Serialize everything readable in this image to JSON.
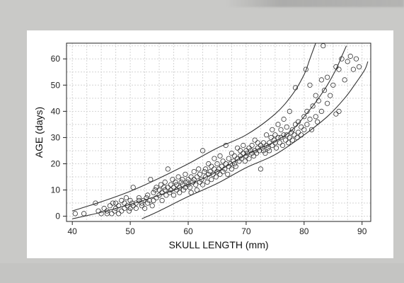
{
  "chart_data": {
    "type": "scatter",
    "title": "",
    "xlabel": "SKULL LENGTH (mm)",
    "ylabel": "AGE (days)",
    "xlim": [
      39,
      91.5
    ],
    "ylim": [
      -2,
      66
    ],
    "xticks": [
      40,
      50,
      60,
      70,
      80,
      90
    ],
    "yticks": [
      0,
      10,
      20,
      30,
      40,
      50,
      60
    ],
    "grid": true,
    "legend": "none",
    "points": [
      [
        40.5,
        1
      ],
      [
        42,
        1
      ],
      [
        44,
        5
      ],
      [
        44.5,
        2
      ],
      [
        45,
        1
      ],
      [
        45.5,
        3
      ],
      [
        46,
        1
      ],
      [
        46,
        2
      ],
      [
        46.5,
        4
      ],
      [
        46.8,
        1
      ],
      [
        47,
        5
      ],
      [
        47.3,
        2
      ],
      [
        47.5,
        3
      ],
      [
        47.5,
        5
      ],
      [
        48,
        1
      ],
      [
        48,
        4
      ],
      [
        48.5,
        6
      ],
      [
        48.5,
        2
      ],
      [
        49,
        3
      ],
      [
        49,
        5
      ],
      [
        49.3,
        7
      ],
      [
        49.5,
        4
      ],
      [
        49.8,
        2
      ],
      [
        50,
        3
      ],
      [
        50,
        6
      ],
      [
        50.3,
        5
      ],
      [
        50.5,
        4
      ],
      [
        50.5,
        11
      ],
      [
        51,
        3
      ],
      [
        51,
        5
      ],
      [
        51.5,
        6
      ],
      [
        51.5,
        7
      ],
      [
        52,
        4
      ],
      [
        52,
        5
      ],
      [
        52.3,
        6
      ],
      [
        52.5,
        3
      ],
      [
        52.8,
        7
      ],
      [
        53,
        5
      ],
      [
        53,
        8
      ],
      [
        53.3,
        6
      ],
      [
        53.5,
        14
      ],
      [
        53.8,
        4
      ],
      [
        54,
        6
      ],
      [
        54,
        9
      ],
      [
        54.3,
        10
      ],
      [
        54.5,
        7
      ],
      [
        54.5,
        11
      ],
      [
        55,
        8
      ],
      [
        55,
        10
      ],
      [
        55.3,
        12
      ],
      [
        55.5,
        9
      ],
      [
        55.5,
        6
      ],
      [
        55.8,
        11
      ],
      [
        56,
        10
      ],
      [
        56,
        13
      ],
      [
        56.2,
        8
      ],
      [
        56.5,
        11
      ],
      [
        56.5,
        18
      ],
      [
        56.8,
        9
      ],
      [
        57,
        10
      ],
      [
        57,
        12
      ],
      [
        57.3,
        14
      ],
      [
        57.5,
        11
      ],
      [
        57.5,
        8
      ],
      [
        57.8,
        13
      ],
      [
        58,
        10
      ],
      [
        58,
        12
      ],
      [
        58.3,
        15
      ],
      [
        58.5,
        11
      ],
      [
        58.5,
        9
      ],
      [
        58.8,
        13
      ],
      [
        59,
        12
      ],
      [
        59,
        14
      ],
      [
        59.2,
        10
      ],
      [
        59.5,
        11
      ],
      [
        59.5,
        16
      ],
      [
        59.8,
        13
      ],
      [
        60,
        12
      ],
      [
        60,
        14
      ],
      [
        60.3,
        11
      ],
      [
        60.5,
        15
      ],
      [
        60.5,
        9
      ],
      [
        60.8,
        13
      ],
      [
        61,
        14
      ],
      [
        61,
        17
      ],
      [
        61.3,
        12
      ],
      [
        61.5,
        15
      ],
      [
        61.5,
        10
      ],
      [
        61.8,
        18
      ],
      [
        62,
        13
      ],
      [
        62,
        16
      ],
      [
        62.3,
        14
      ],
      [
        62.5,
        25
      ],
      [
        62.5,
        12
      ],
      [
        62.8,
        17
      ],
      [
        63,
        15
      ],
      [
        63,
        18
      ],
      [
        63.3,
        13
      ],
      [
        63.5,
        16
      ],
      [
        63.5,
        20
      ],
      [
        63.8,
        17
      ],
      [
        64,
        14
      ],
      [
        64,
        19
      ],
      [
        64.3,
        16
      ],
      [
        64.5,
        18
      ],
      [
        64.5,
        22
      ],
      [
        64.8,
        15
      ],
      [
        65,
        17
      ],
      [
        65,
        20
      ],
      [
        65.3,
        18
      ],
      [
        65.5,
        16
      ],
      [
        65.5,
        23
      ],
      [
        65.8,
        19
      ],
      [
        66,
        17
      ],
      [
        66,
        21
      ],
      [
        66.3,
        18
      ],
      [
        66.5,
        20
      ],
      [
        66.5,
        27
      ],
      [
        66.8,
        16
      ],
      [
        67,
        19
      ],
      [
        67,
        22
      ],
      [
        67.3,
        20
      ],
      [
        67.5,
        18
      ],
      [
        67.5,
        24
      ],
      [
        67.8,
        21
      ],
      [
        68,
        20
      ],
      [
        68,
        23
      ],
      [
        68.2,
        19
      ],
      [
        68.5,
        22
      ],
      [
        68.5,
        26
      ],
      [
        68.8,
        21
      ],
      [
        69,
        23
      ],
      [
        69,
        25
      ],
      [
        69.2,
        22
      ],
      [
        69.5,
        24
      ],
      [
        69.5,
        27
      ],
      [
        69.8,
        21
      ],
      [
        70,
        23
      ],
      [
        70,
        25
      ],
      [
        70.2,
        24
      ],
      [
        70.5,
        22
      ],
      [
        70.5,
        26
      ],
      [
        70.8,
        25
      ],
      [
        71,
        24
      ],
      [
        71,
        27
      ],
      [
        71.3,
        23
      ],
      [
        71.5,
        25
      ],
      [
        71.5,
        29
      ],
      [
        71.8,
        24
      ],
      [
        72,
        26
      ],
      [
        72,
        28
      ],
      [
        72.3,
        25
      ],
      [
        72.5,
        27
      ],
      [
        72.5,
        18
      ],
      [
        72.8,
        26
      ],
      [
        73,
        25
      ],
      [
        73,
        28
      ],
      [
        73.3,
        24
      ],
      [
        73.5,
        27
      ],
      [
        73.5,
        31
      ],
      [
        73.8,
        26
      ],
      [
        74,
        28
      ],
      [
        74,
        25
      ],
      [
        74.3,
        30
      ],
      [
        74.5,
        27
      ],
      [
        74.5,
        33
      ],
      [
        74.8,
        29
      ],
      [
        75,
        28
      ],
      [
        75,
        31
      ],
      [
        75.2,
        26
      ],
      [
        75.5,
        30
      ],
      [
        75.5,
        35
      ],
      [
        75.8,
        28
      ],
      [
        76,
        30
      ],
      [
        76,
        33
      ],
      [
        76.3,
        27
      ],
      [
        76.5,
        31
      ],
      [
        76.5,
        37
      ],
      [
        76.8,
        29
      ],
      [
        77,
        31
      ],
      [
        77,
        34
      ],
      [
        77.3,
        28
      ],
      [
        77.5,
        30
      ],
      [
        77.5,
        40
      ],
      [
        77.8,
        32
      ],
      [
        78,
        29
      ],
      [
        78,
        33
      ],
      [
        78.3,
        31
      ],
      [
        78.5,
        35
      ],
      [
        78.5,
        49
      ],
      [
        78.8,
        30
      ],
      [
        79,
        32
      ],
      [
        79,
        36
      ],
      [
        79.5,
        34
      ],
      [
        79.5,
        31
      ],
      [
        80,
        33
      ],
      [
        80,
        38
      ],
      [
        80.3,
        56
      ],
      [
        80.5,
        35
      ],
      [
        80.5,
        40
      ],
      [
        81,
        37
      ],
      [
        81,
        50
      ],
      [
        81.3,
        33
      ],
      [
        81.5,
        42
      ],
      [
        82,
        38
      ],
      [
        82,
        46
      ],
      [
        82.3,
        36
      ],
      [
        82.5,
        44
      ],
      [
        83,
        40
      ],
      [
        83,
        52
      ],
      [
        83.3,
        65
      ],
      [
        83.5,
        48
      ],
      [
        84,
        43
      ],
      [
        84,
        53
      ],
      [
        84.5,
        46
      ],
      [
        85,
        50
      ],
      [
        85.5,
        39
      ],
      [
        85.5,
        57
      ],
      [
        86,
        40
      ],
      [
        86,
        56
      ],
      [
        86.5,
        60
      ],
      [
        87,
        52
      ],
      [
        87.5,
        59
      ],
      [
        88,
        61
      ],
      [
        88.5,
        56
      ],
      [
        89,
        60
      ],
      [
        89.5,
        57
      ]
    ],
    "curves": {
      "center": [
        [
          40,
          -1
        ],
        [
          45,
          1.5
        ],
        [
          50,
          4.5
        ],
        [
          55,
          8
        ],
        [
          60,
          12
        ],
        [
          65,
          17
        ],
        [
          70,
          23.5
        ],
        [
          75,
          28.5
        ],
        [
          78,
          33
        ],
        [
          80,
          38
        ],
        [
          82,
          43.5
        ],
        [
          84,
          50
        ],
        [
          85.5,
          56
        ],
        [
          86.5,
          61
        ],
        [
          87.3,
          65
        ]
      ],
      "upper": [
        [
          40,
          2
        ],
        [
          45,
          5.5
        ],
        [
          50,
          9.5
        ],
        [
          55,
          14.5
        ],
        [
          60,
          20
        ],
        [
          65,
          26
        ],
        [
          70,
          31
        ],
        [
          75,
          39
        ],
        [
          78,
          46.5
        ],
        [
          80,
          54
        ],
        [
          81,
          60
        ],
        [
          82,
          66
        ]
      ],
      "lower": [
        [
          52,
          -1
        ],
        [
          55,
          2
        ],
        [
          60,
          7.5
        ],
        [
          65,
          12.5
        ],
        [
          70,
          18.5
        ],
        [
          75,
          23.5
        ],
        [
          80,
          31
        ],
        [
          84,
          38
        ],
        [
          87,
          45
        ],
        [
          89,
          51
        ],
        [
          90.5,
          56
        ],
        [
          91,
          59
        ]
      ]
    }
  }
}
